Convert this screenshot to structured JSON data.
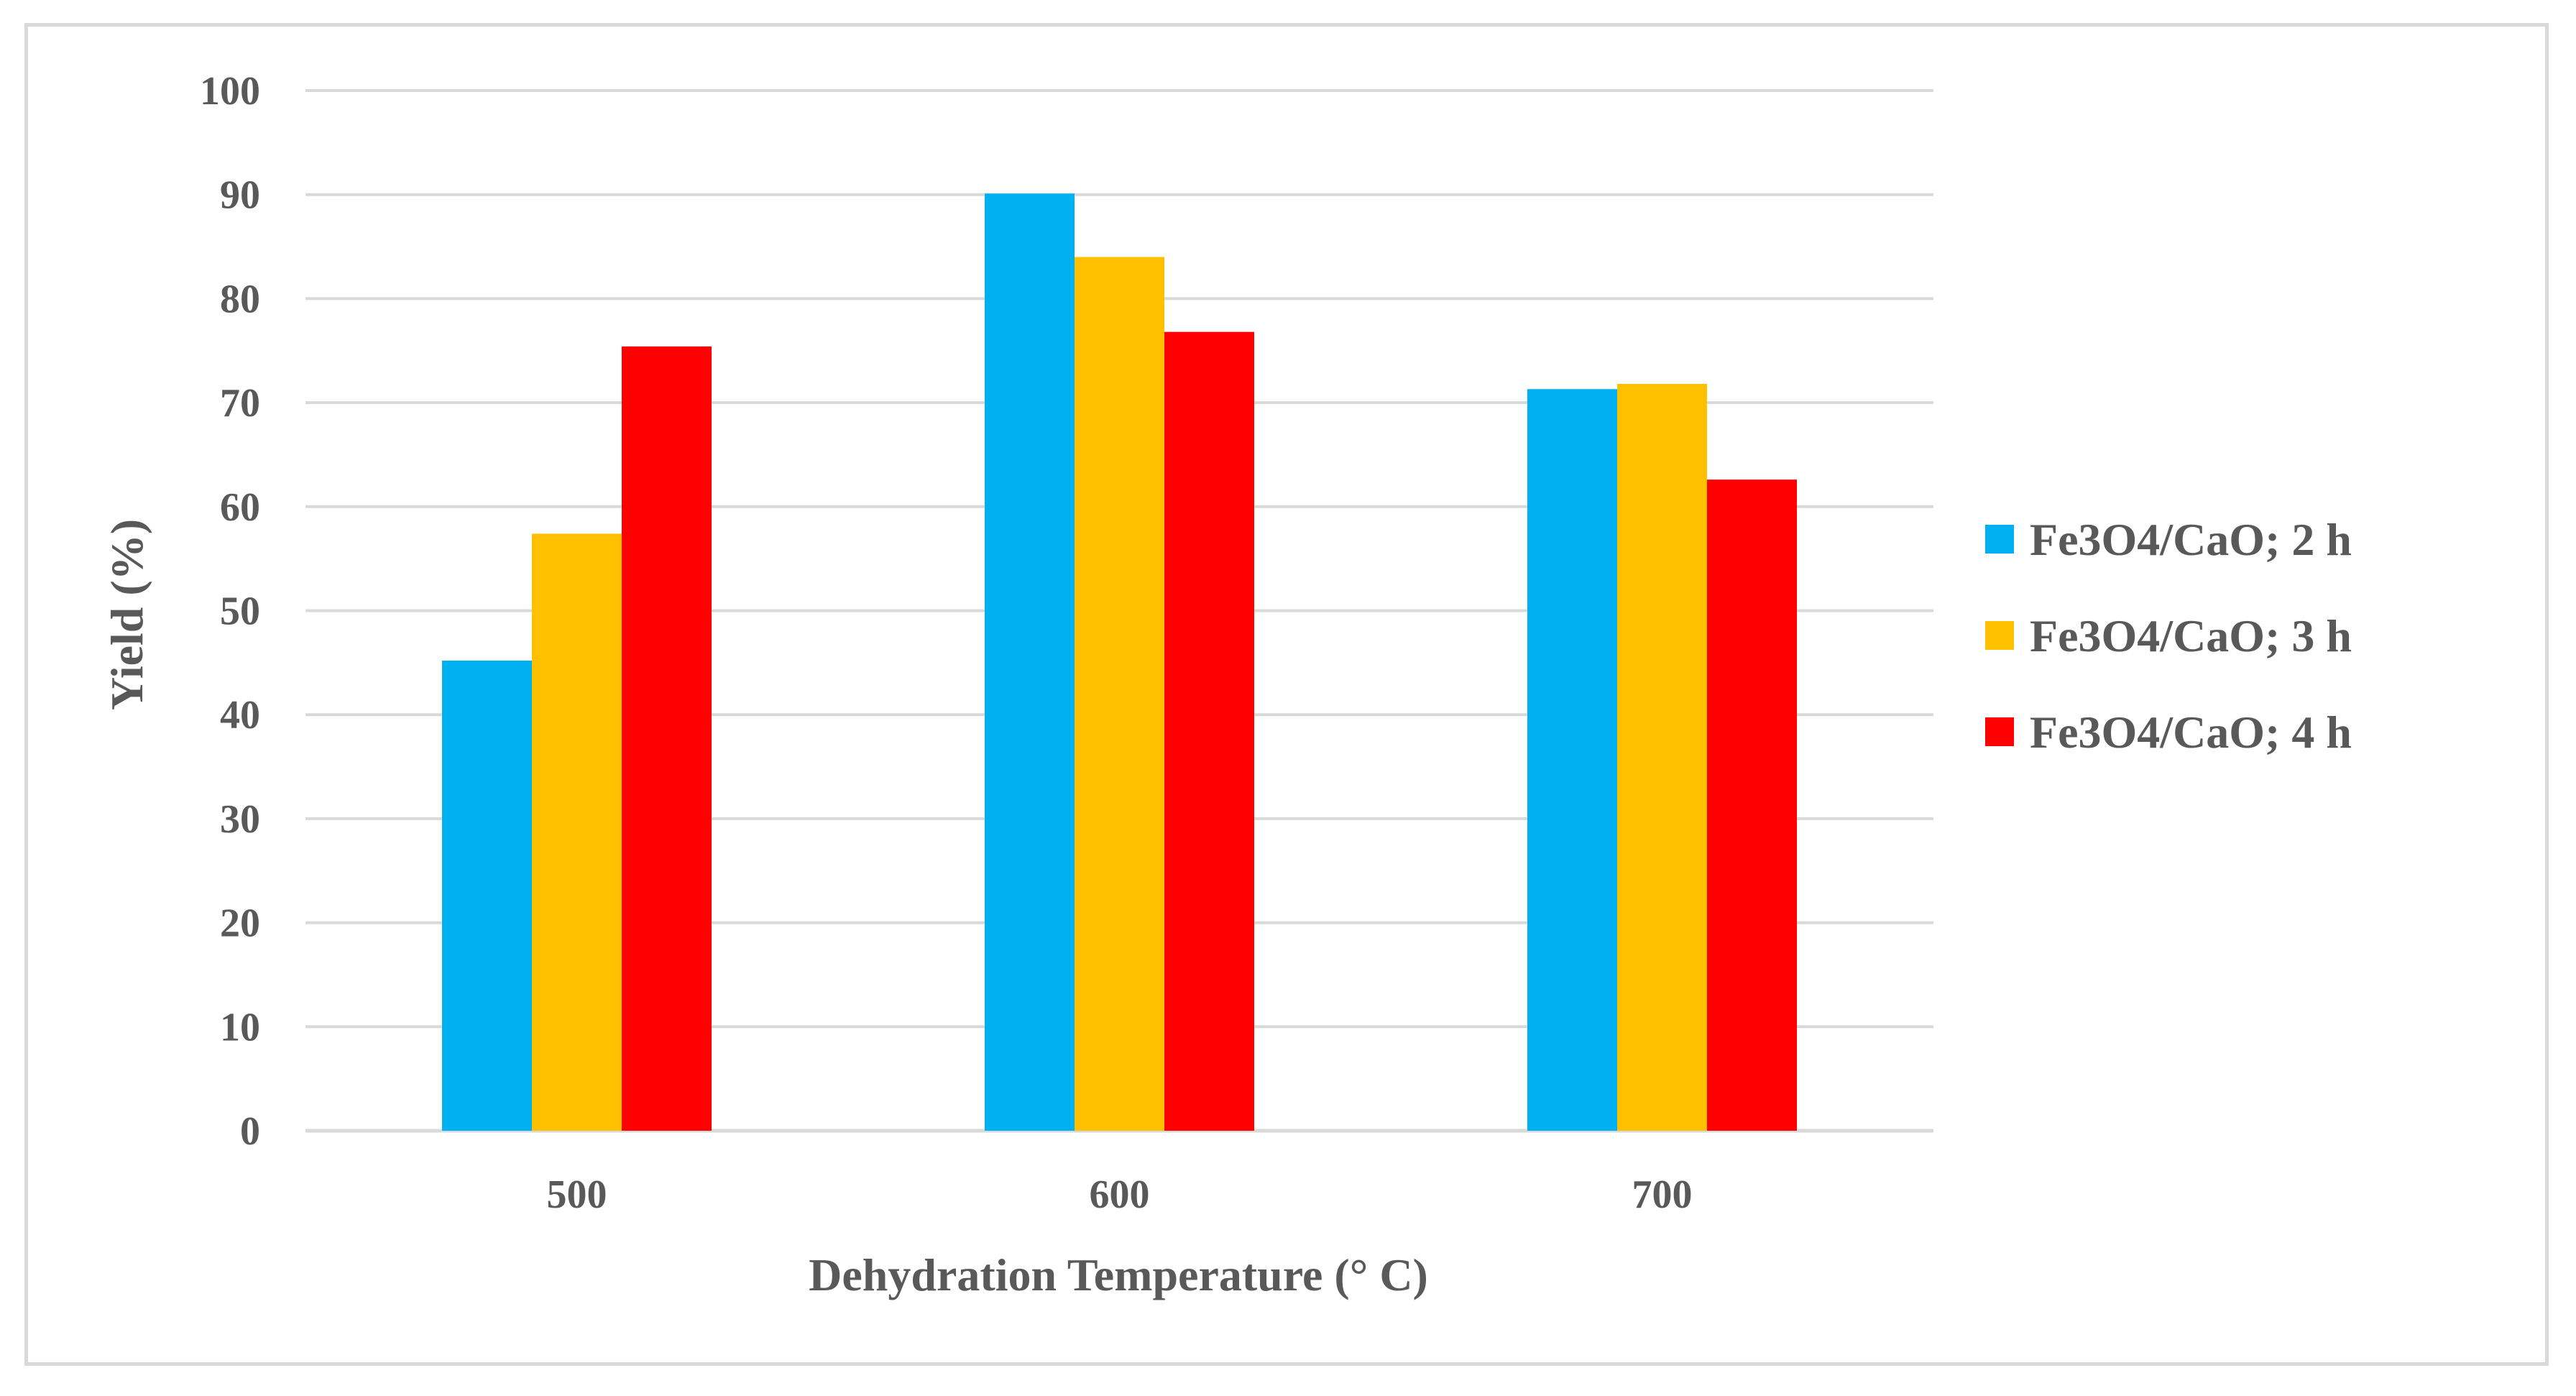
{
  "chart_data": {
    "type": "bar",
    "title": "",
    "xlabel": "Dehydration Temperature (° C)",
    "ylabel": "Yield (%)",
    "categories": [
      "500",
      "600",
      "700"
    ],
    "ylim": [
      0,
      100
    ],
    "yticks": [
      "0",
      "10",
      "20",
      "30",
      "40",
      "50",
      "60",
      "70",
      "80",
      "90",
      "100"
    ],
    "grid": true,
    "legend_position": "right",
    "series": [
      {
        "name": "Fe3O4/CaO; 2 h",
        "color": "#00b0f0",
        "values": [
          45.2,
          90.1,
          71.3
        ]
      },
      {
        "name": "Fe3O4/CaO; 3 h",
        "color": "#ffc000",
        "values": [
          57.4,
          84.0,
          71.8
        ]
      },
      {
        "name": "Fe3O4/CaO; 4 h",
        "color": "#ff0000",
        "values": [
          75.4,
          76.8,
          62.6
        ]
      }
    ]
  }
}
